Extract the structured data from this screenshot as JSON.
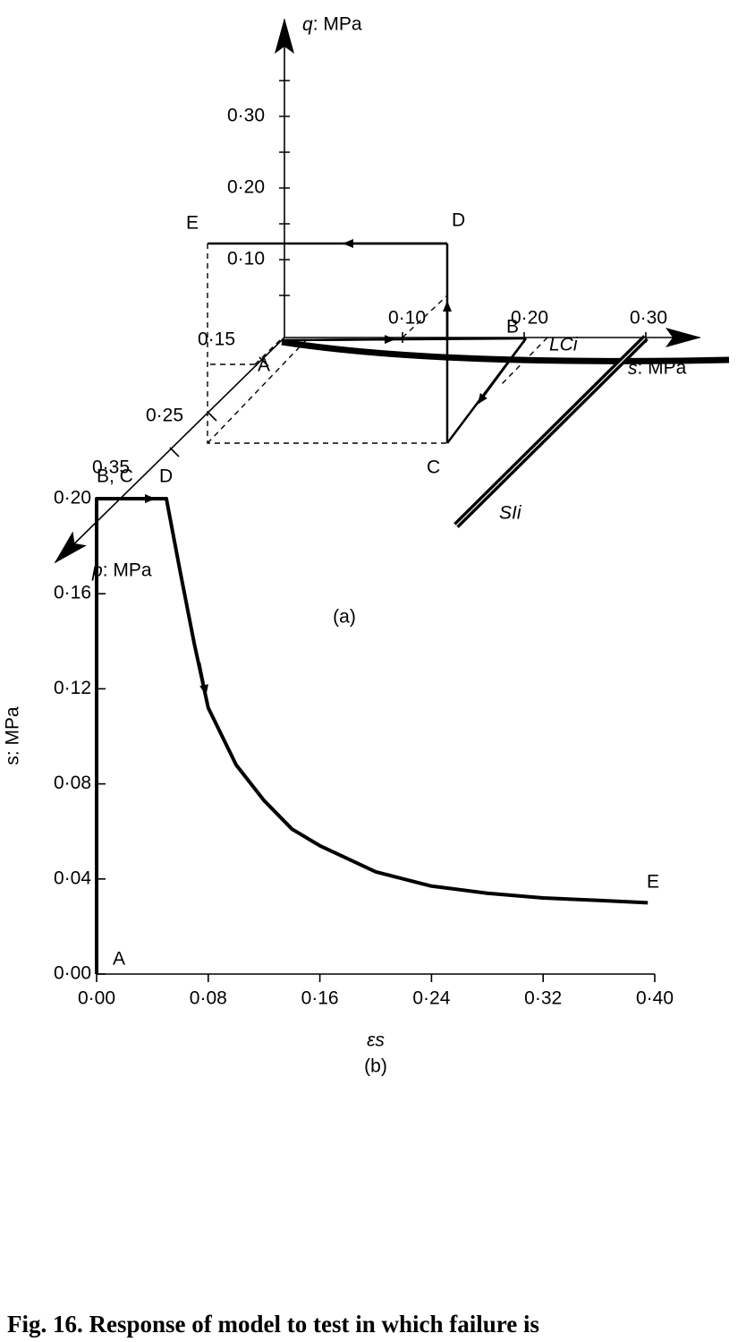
{
  "diagram": {
    "panel_label": "(a)",
    "q_axis": {
      "label": "q: MPa",
      "ticks": [
        "0·30",
        "0·20",
        "0·10"
      ]
    },
    "s_axis": {
      "label": "s: MPa",
      "ticks": [
        "0·10",
        "0·20",
        "0·30"
      ]
    },
    "p_axis": {
      "label": "p: MPa",
      "ticks": [
        "0·15",
        "0·25",
        "0·35"
      ]
    },
    "points": [
      "A",
      "B",
      "C",
      "D",
      "E"
    ],
    "curves": [
      "LCi",
      "SIi"
    ]
  },
  "chart_data": {
    "type": "line",
    "panel_label": "(b)",
    "xlabel": "εs",
    "ylabel": "s: MPa",
    "x": [
      0,
      0,
      0.05,
      0.06,
      0.07,
      0.08,
      0.1,
      0.12,
      0.14,
      0.16,
      0.2,
      0.24,
      0.28,
      0.32,
      0.36,
      0.395
    ],
    "series": [
      {
        "color": "#000000",
        "values": [
          0,
          0.2,
          0.2,
          0.169,
          0.139,
          0.112,
          0.088,
          0.073,
          0.061,
          0.054,
          0.043,
          0.037,
          0.034,
          0.032,
          0.031,
          0.03
        ]
      }
    ],
    "annotations": [
      "A",
      "B, C",
      "D",
      "E"
    ],
    "xlim": [
      0,
      0.4
    ],
    "ylim": [
      0,
      0.2
    ],
    "xticks": [
      {
        "value": 0,
        "label": "0·00"
      },
      {
        "value": 0.08,
        "label": "0·08"
      },
      {
        "value": 0.16,
        "label": "0·16"
      },
      {
        "value": 0.24,
        "label": "0·24"
      },
      {
        "value": 0.32,
        "label": "0·32"
      },
      {
        "value": 0.4,
        "label": "0·40"
      }
    ],
    "yticks": [
      {
        "value": 0,
        "label": "0·00"
      },
      {
        "value": 0.04,
        "label": "0·04"
      },
      {
        "value": 0.08,
        "label": "0·08"
      },
      {
        "value": 0.12,
        "label": "0·12"
      },
      {
        "value": 0.16,
        "label": "0·16"
      },
      {
        "value": 0.2,
        "label": "0·20"
      }
    ]
  },
  "caption": "Fig. 16. Response of model to test in which failure is"
}
